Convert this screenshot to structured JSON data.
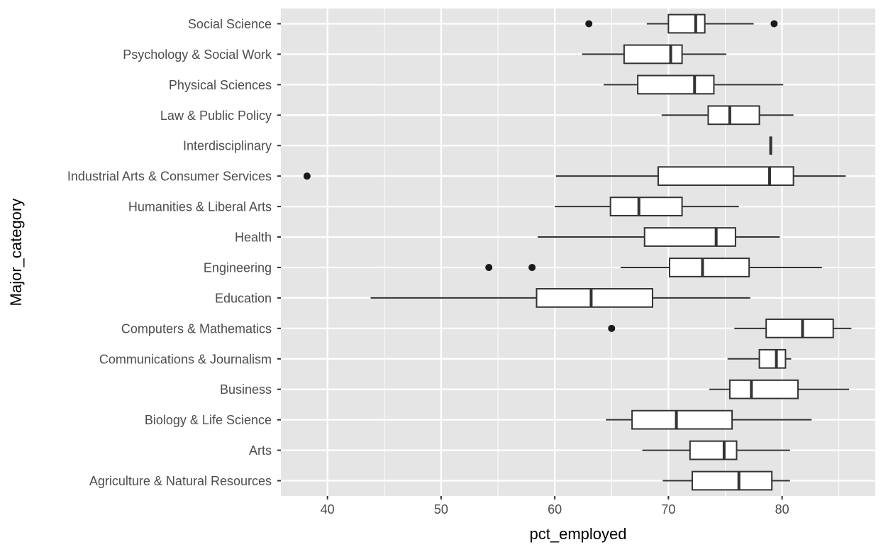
{
  "chart_data": {
    "type": "boxplot",
    "orientation": "horizontal",
    "xlabel": "pct_employed",
    "ylabel": "Major_category",
    "xlim": [
      35.9,
      88.2
    ],
    "x_ticks": [
      40,
      50,
      60,
      70,
      80
    ],
    "grid": true,
    "colors": {
      "panel": "#e5e5e5",
      "grid": "#ffffff",
      "box_fill": "#ffffff",
      "stroke": "#333333",
      "outlier": "#1a1a1a"
    },
    "categories": [
      "Agriculture & Natural Resources",
      "Arts",
      "Biology & Life Science",
      "Business",
      "Communications & Journalism",
      "Computers & Mathematics",
      "Education",
      "Engineering",
      "Health",
      "Humanities & Liberal Arts",
      "Industrial Arts & Consumer Services",
      "Interdisciplinary",
      "Law & Public Policy",
      "Physical Sciences",
      "Psychology & Social Work",
      "Social Science"
    ],
    "boxes": [
      {
        "category": "Agriculture & Natural Resources",
        "min": 69.5,
        "q1": 72.1,
        "median": 76.2,
        "q3": 79.1,
        "max": 80.7,
        "outliers": []
      },
      {
        "category": "Arts",
        "min": 67.7,
        "q1": 71.9,
        "median": 74.9,
        "q3": 76.0,
        "max": 80.7,
        "outliers": []
      },
      {
        "category": "Biology & Life Science",
        "min": 64.5,
        "q1": 66.8,
        "median": 70.7,
        "q3": 75.6,
        "max": 82.6,
        "outliers": []
      },
      {
        "category": "Business",
        "min": 73.6,
        "q1": 75.4,
        "median": 77.3,
        "q3": 81.4,
        "max": 85.9,
        "outliers": []
      },
      {
        "category": "Communications & Journalism",
        "min": 75.2,
        "q1": 78.0,
        "median": 79.5,
        "q3": 80.3,
        "max": 80.8,
        "outliers": []
      },
      {
        "category": "Computers & Mathematics",
        "min": 75.8,
        "q1": 78.6,
        "median": 81.8,
        "q3": 84.5,
        "max": 86.1,
        "outliers": [
          65.0
        ]
      },
      {
        "category": "Education",
        "min": 43.8,
        "q1": 58.4,
        "median": 63.2,
        "q3": 68.6,
        "max": 77.2,
        "outliers": []
      },
      {
        "category": "Engineering",
        "min": 65.8,
        "q1": 70.1,
        "median": 73.0,
        "q3": 77.1,
        "max": 83.5,
        "outliers": [
          54.2,
          58.0
        ]
      },
      {
        "category": "Health",
        "min": 58.5,
        "q1": 67.9,
        "median": 74.2,
        "q3": 75.9,
        "max": 79.8,
        "outliers": []
      },
      {
        "category": "Humanities & Liberal Arts",
        "min": 60.0,
        "q1": 64.9,
        "median": 67.4,
        "q3": 71.2,
        "max": 76.2,
        "outliers": []
      },
      {
        "category": "Industrial Arts & Consumer Services",
        "min": 60.1,
        "q1": 69.1,
        "median": 78.9,
        "q3": 81.0,
        "max": 85.6,
        "outliers": [
          38.2
        ]
      },
      {
        "category": "Interdisciplinary",
        "min": 79.0,
        "q1": 79.0,
        "median": 79.0,
        "q3": 79.0,
        "max": 79.0,
        "outliers": []
      },
      {
        "category": "Law & Public Policy",
        "min": 69.4,
        "q1": 73.5,
        "median": 75.4,
        "q3": 78.0,
        "max": 81.0,
        "outliers": []
      },
      {
        "category": "Physical Sciences",
        "min": 64.3,
        "q1": 67.3,
        "median": 72.3,
        "q3": 74.0,
        "max": 80.1,
        "outliers": []
      },
      {
        "category": "Psychology & Social Work",
        "min": 62.4,
        "q1": 66.1,
        "median": 70.2,
        "q3": 71.2,
        "max": 75.1,
        "outliers": []
      },
      {
        "category": "Social Science",
        "min": 68.1,
        "q1": 70.0,
        "median": 72.4,
        "q3": 73.2,
        "max": 77.5,
        "outliers": [
          63.0,
          79.3
        ]
      }
    ]
  }
}
